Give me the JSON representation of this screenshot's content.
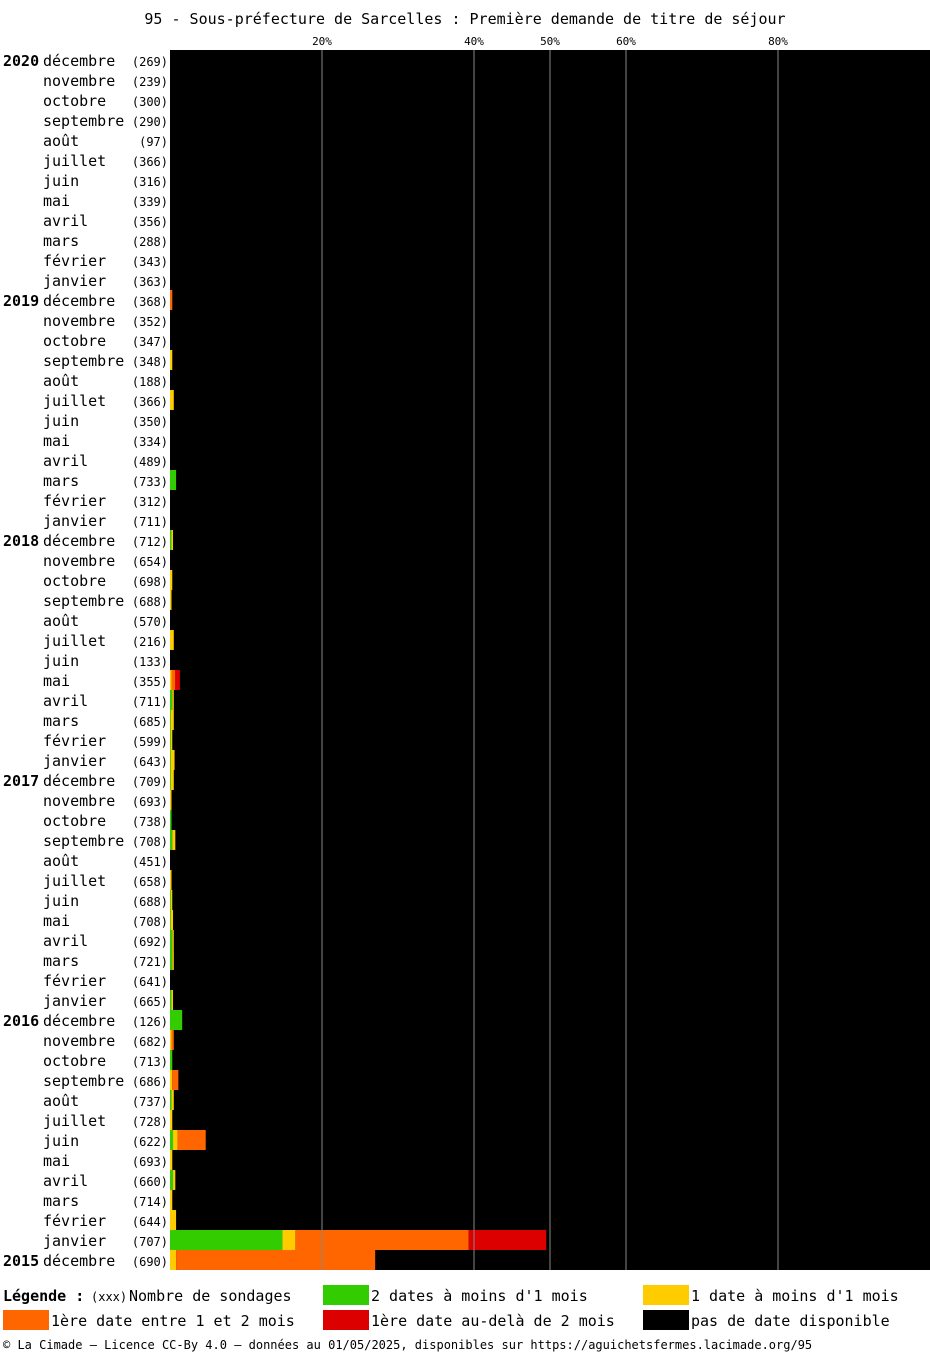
{
  "title": "95 - Sous-préfecture de Sarcelles : Première demande de titre de séjour",
  "colors": {
    "two_dates_lt_1_month": "#33cc00",
    "one_date_lt_1_month": "#ffcc00",
    "first_date_1_to_2_months": "#ff6600",
    "first_date_gt_2_months": "#dd0000",
    "no_date": "#000000",
    "gridline": "#888888"
  },
  "chart_data": {
    "type": "bar",
    "orientation": "horizontal-stacked",
    "x_ticks": [
      "20%",
      "40%",
      "50%",
      "60%",
      "80%"
    ],
    "x_tick_values": [
      20,
      40,
      50,
      60,
      80
    ],
    "xlim": [
      0,
      100
    ],
    "grid": true,
    "series_names": [
      "2 dates à moins d'1 mois",
      "1 date à moins d'1 mois",
      "1ère date entre 1 et 2 mois",
      "1ère date au-delà de 2 mois",
      "pas de date disponible"
    ],
    "rows": [
      {
        "year": "2020",
        "month": "décembre",
        "count": "(269)",
        "v": [
          0,
          0,
          0,
          0
        ]
      },
      {
        "year": "",
        "month": "novembre",
        "count": "(239)",
        "v": [
          0,
          0,
          0,
          0
        ]
      },
      {
        "year": "",
        "month": "octobre",
        "count": "(300)",
        "v": [
          0,
          0,
          0,
          0
        ]
      },
      {
        "year": "",
        "month": "septembre",
        "count": "(290)",
        "v": [
          0,
          0,
          0,
          0
        ]
      },
      {
        "year": "",
        "month": "août",
        "count": "(97)",
        "v": [
          0,
          0,
          0,
          0
        ]
      },
      {
        "year": "",
        "month": "juillet",
        "count": "(366)",
        "v": [
          0,
          0,
          0,
          0
        ]
      },
      {
        "year": "",
        "month": "juin",
        "count": "(316)",
        "v": [
          0,
          0,
          0,
          0
        ]
      },
      {
        "year": "",
        "month": "mai",
        "count": "(339)",
        "v": [
          0,
          0,
          0,
          0
        ]
      },
      {
        "year": "",
        "month": "avril",
        "count": "(356)",
        "v": [
          0,
          0,
          0,
          0
        ]
      },
      {
        "year": "",
        "month": "mars",
        "count": "(288)",
        "v": [
          0,
          0,
          0,
          0
        ]
      },
      {
        "year": "",
        "month": "février",
        "count": "(343)",
        "v": [
          0,
          0,
          0,
          0
        ]
      },
      {
        "year": "",
        "month": "janvier",
        "count": "(363)",
        "v": [
          0,
          0,
          0,
          0
        ]
      },
      {
        "year": "2019",
        "month": "décembre",
        "count": "(368)",
        "v": [
          0,
          0,
          0.3,
          0
        ]
      },
      {
        "year": "",
        "month": "novembre",
        "count": "(352)",
        "v": [
          0,
          0,
          0,
          0
        ]
      },
      {
        "year": "",
        "month": "octobre",
        "count": "(347)",
        "v": [
          0,
          0,
          0,
          0
        ]
      },
      {
        "year": "",
        "month": "septembre",
        "count": "(348)",
        "v": [
          0,
          0.3,
          0,
          0
        ]
      },
      {
        "year": "",
        "month": "août",
        "count": "(188)",
        "v": [
          0,
          0,
          0,
          0
        ]
      },
      {
        "year": "",
        "month": "juillet",
        "count": "(366)",
        "v": [
          0,
          0.5,
          0,
          0
        ]
      },
      {
        "year": "",
        "month": "juin",
        "count": "(350)",
        "v": [
          0,
          0,
          0,
          0
        ]
      },
      {
        "year": "",
        "month": "mai",
        "count": "(334)",
        "v": [
          0,
          0,
          0,
          0
        ]
      },
      {
        "year": "",
        "month": "avril",
        "count": "(489)",
        "v": [
          0,
          0,
          0,
          0
        ]
      },
      {
        "year": "",
        "month": "mars",
        "count": "(733)",
        "v": [
          0.8,
          0,
          0,
          0
        ]
      },
      {
        "year": "",
        "month": "février",
        "count": "(312)",
        "v": [
          0,
          0,
          0,
          0
        ]
      },
      {
        "year": "",
        "month": "janvier",
        "count": "(711)",
        "v": [
          0,
          0,
          0,
          0
        ]
      },
      {
        "year": "2018",
        "month": "décembre",
        "count": "(712)",
        "v": [
          0.2,
          0.1,
          0,
          0
        ]
      },
      {
        "year": "",
        "month": "novembre",
        "count": "(654)",
        "v": [
          0,
          0,
          0,
          0
        ]
      },
      {
        "year": "",
        "month": "octobre",
        "count": "(698)",
        "v": [
          0,
          0.3,
          0,
          0
        ]
      },
      {
        "year": "",
        "month": "septembre",
        "count": "(688)",
        "v": [
          0,
          0.1,
          0,
          0
        ]
      },
      {
        "year": "",
        "month": "août",
        "count": "(570)",
        "v": [
          0,
          0,
          0,
          0
        ]
      },
      {
        "year": "",
        "month": "juillet",
        "count": "(216)",
        "v": [
          0,
          0.5,
          0,
          0
        ]
      },
      {
        "year": "",
        "month": "juin",
        "count": "(133)",
        "v": [
          0,
          0,
          0,
          0
        ]
      },
      {
        "year": "",
        "month": "mai",
        "count": "(355)",
        "v": [
          0,
          0.2,
          0.5,
          0.6
        ]
      },
      {
        "year": "",
        "month": "avril",
        "count": "(711)",
        "v": [
          0.3,
          0.2,
          0,
          0
        ]
      },
      {
        "year": "",
        "month": "mars",
        "count": "(685)",
        "v": [
          0.1,
          0.4,
          0,
          0
        ]
      },
      {
        "year": "",
        "month": "février",
        "count": "(599)",
        "v": [
          0.1,
          0.2,
          0,
          0
        ]
      },
      {
        "year": "",
        "month": "janvier",
        "count": "(643)",
        "v": [
          0.1,
          0.5,
          0,
          0
        ]
      },
      {
        "year": "2017",
        "month": "décembre",
        "count": "(709)",
        "v": [
          0.1,
          0.4,
          0,
          0
        ]
      },
      {
        "year": "",
        "month": "novembre",
        "count": "(693)",
        "v": [
          0,
          0.1,
          0,
          0
        ]
      },
      {
        "year": "",
        "month": "octobre",
        "count": "(738)",
        "v": [
          0.2,
          0,
          0,
          0
        ]
      },
      {
        "year": "",
        "month": "septembre",
        "count": "(708)",
        "v": [
          0.3,
          0.4,
          0,
          0
        ]
      },
      {
        "year": "",
        "month": "août",
        "count": "(451)",
        "v": [
          0,
          0,
          0,
          0
        ]
      },
      {
        "year": "",
        "month": "juillet",
        "count": "(658)",
        "v": [
          0,
          0.2,
          0,
          0
        ]
      },
      {
        "year": "",
        "month": "juin",
        "count": "(688)",
        "v": [
          0.1,
          0.1,
          0,
          0
        ]
      },
      {
        "year": "",
        "month": "mai",
        "count": "(708)",
        "v": [
          0.1,
          0.3,
          0,
          0
        ]
      },
      {
        "year": "",
        "month": "avril",
        "count": "(692)",
        "v": [
          0.3,
          0.1,
          0,
          0
        ]
      },
      {
        "year": "",
        "month": "mars",
        "count": "(721)",
        "v": [
          0.3,
          0.2,
          0,
          0
        ]
      },
      {
        "year": "",
        "month": "février",
        "count": "(641)",
        "v": [
          0,
          0,
          0,
          0
        ]
      },
      {
        "year": "",
        "month": "janvier",
        "count": "(665)",
        "v": [
          0.2,
          0.1,
          0,
          0
        ]
      },
      {
        "year": "2016",
        "month": "décembre",
        "count": "(126)",
        "v": [
          1.6,
          0,
          0,
          0
        ]
      },
      {
        "year": "",
        "month": "novembre",
        "count": "(682)",
        "v": [
          0,
          0.2,
          0.3,
          0
        ]
      },
      {
        "year": "",
        "month": "octobre",
        "count": "(713)",
        "v": [
          0.3,
          0,
          0,
          0
        ]
      },
      {
        "year": "",
        "month": "septembre",
        "count": "(686)",
        "v": [
          0,
          0.3,
          0.8,
          0
        ]
      },
      {
        "year": "",
        "month": "août",
        "count": "(737)",
        "v": [
          0.2,
          0.3,
          0,
          0
        ]
      },
      {
        "year": "",
        "month": "juillet",
        "count": "(728)",
        "v": [
          0,
          0.3,
          0,
          0
        ]
      },
      {
        "year": "",
        "month": "juin",
        "count": "(622)",
        "v": [
          0.4,
          0.6,
          3.7,
          0
        ]
      },
      {
        "year": "",
        "month": "mai",
        "count": "(693)",
        "v": [
          0,
          0.3,
          0,
          0
        ]
      },
      {
        "year": "",
        "month": "avril",
        "count": "(660)",
        "v": [
          0.4,
          0.3,
          0,
          0
        ]
      },
      {
        "year": "",
        "month": "mars",
        "count": "(714)",
        "v": [
          0,
          0.3,
          0,
          0
        ]
      },
      {
        "year": "",
        "month": "février",
        "count": "(644)",
        "v": [
          0,
          0.8,
          0,
          0
        ]
      },
      {
        "year": "",
        "month": "janvier",
        "count": "(707)",
        "v": [
          14.8,
          1.7,
          22.8,
          10.2
        ]
      },
      {
        "year": "2015",
        "month": "décembre",
        "count": "(690)",
        "v": [
          0,
          0.8,
          26.2,
          0
        ]
      }
    ]
  },
  "legend": {
    "title": "Légende :",
    "count_hint": "(xxx)",
    "count_label": "Nombre de sondages",
    "two_dates": "2 dates à moins d'1 mois",
    "one_date": "1 date à moins d'1 mois",
    "one_to_two": "1ère date entre 1 et 2 mois",
    "beyond_two": "1ère date au-delà de 2 mois",
    "none": "pas de date disponible"
  },
  "footer": "© La Cimade — Licence CC-By 4.0 — données au 01/05/2025, disponibles sur https://aguichetsfermes.lacimade.org/95"
}
